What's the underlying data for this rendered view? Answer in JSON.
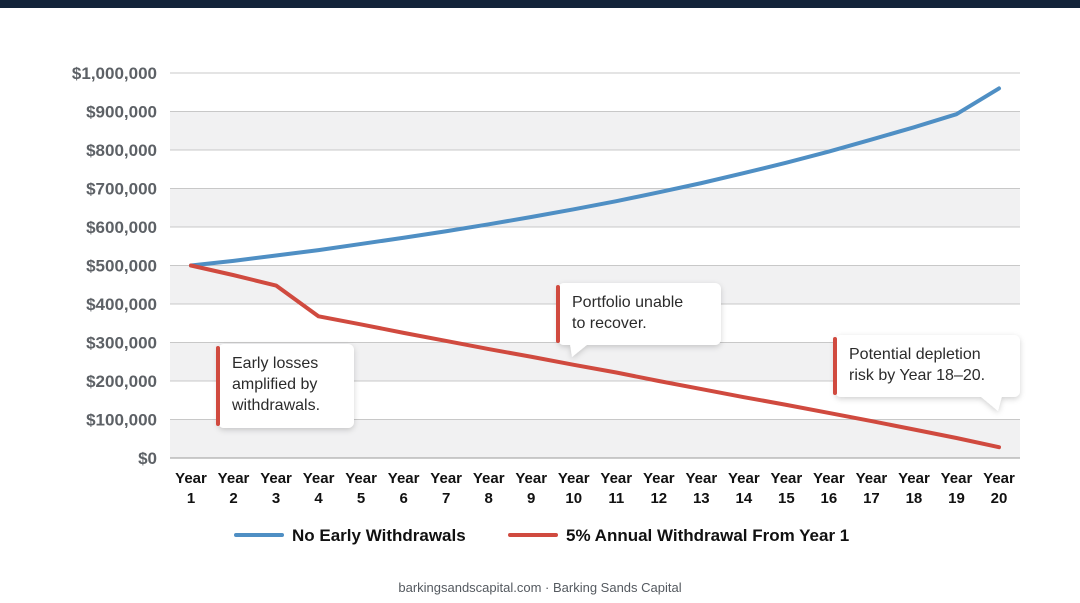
{
  "chart_data": {
    "type": "line",
    "categories": [
      "Year 1",
      "Year 2",
      "Year 3",
      "Year 4",
      "Year 5",
      "Year 6",
      "Year 7",
      "Year 8",
      "Year 9",
      "Year 10",
      "Year 11",
      "Year 12",
      "Year 13",
      "Year 14",
      "Year 15",
      "Year 16",
      "Year 17",
      "Year 18",
      "Year 19",
      "Year 20"
    ],
    "y_tick_labels": [
      "$0",
      "$100,000",
      "$200,000",
      "$300,000",
      "$400,000",
      "$500,000",
      "$600,000",
      "$700,000",
      "$800,000",
      "$900,000",
      "$1,000,000"
    ],
    "ylim": [
      0,
      1000000
    ],
    "grid": true,
    "legend_position": "bottom",
    "series": [
      {
        "name": "No Early Withdrawals",
        "color": "#4f8fc4",
        "values": [
          500000,
          512000,
          526000,
          540000,
          556000,
          572000,
          589000,
          607000,
          626000,
          646000,
          667000,
          690000,
          714000,
          740000,
          767000,
          796000,
          827000,
          859000,
          893000,
          960000
        ]
      },
      {
        "name": "5% Annual Withdrawal From Year 1",
        "color": "#d04a3f",
        "values": [
          500000,
          475000,
          448000,
          368000,
          347000,
          325000,
          304000,
          283000,
          263000,
          242000,
          222000,
          200000,
          179000,
          158000,
          138000,
          117000,
          96000,
          74000,
          52000,
          28000
        ]
      }
    ],
    "annotations": [
      {
        "text_lines": [
          "Early losses",
          "amplified by",
          "withdrawals."
        ]
      },
      {
        "text_lines": [
          "Portfolio unable",
          "to recover."
        ]
      },
      {
        "text_lines": [
          "Potential depletion",
          "risk by Year 18–20."
        ]
      }
    ]
  },
  "footer": "barkingsandscapital.com · Barking Sands Capital"
}
